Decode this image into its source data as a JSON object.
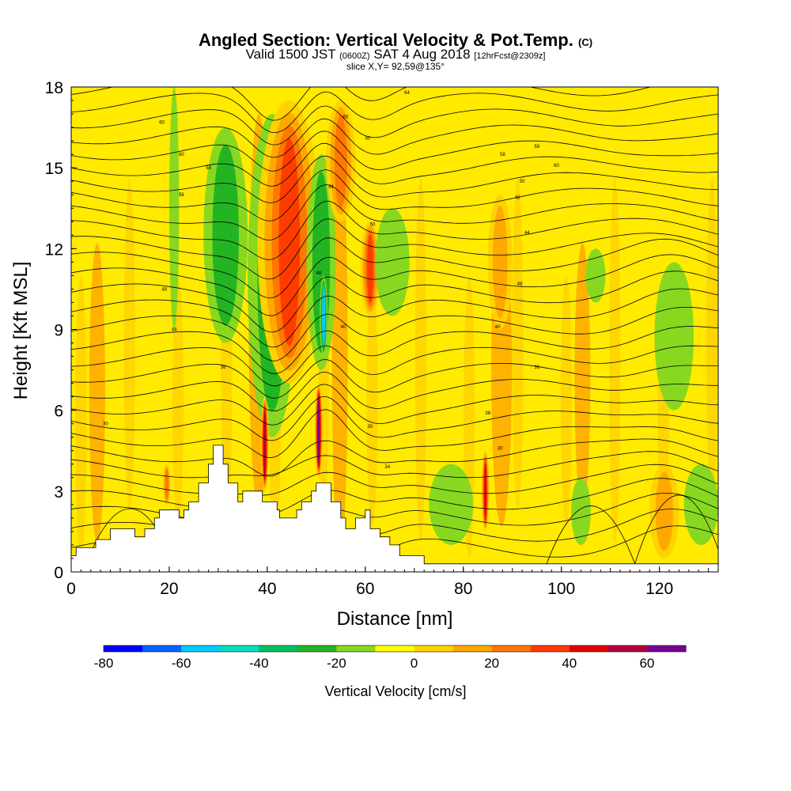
{
  "chart_data": {
    "type": "heatmap",
    "title": "Angled Section: Vertical Velocity & Pot.Temp.",
    "title_unit": "(C)",
    "subtitle_prefix": "Valid 1500 JST",
    "subtitle_utc": "(0600Z)",
    "subtitle_date": "SAT 4 Aug 2018",
    "subtitle_fcst": "[12hrFcst@2309z]",
    "slice_info": "slice X,Y= 92,59@135°",
    "xlabel": "Distance [nm]",
    "ylabel": "Height [Kft MSL]",
    "xlim": [
      0,
      132
    ],
    "ylim": [
      0,
      18
    ],
    "x_ticks": [
      "0",
      "20",
      "40",
      "60",
      "80",
      "100",
      "120"
    ],
    "y_ticks": [
      "0",
      "3",
      "6",
      "9",
      "12",
      "15",
      "18"
    ],
    "x_tick_values": [
      0,
      20,
      40,
      60,
      80,
      100,
      120
    ],
    "y_tick_values": [
      0,
      3,
      6,
      9,
      12,
      15,
      18
    ],
    "colorbar": {
      "title": "Vertical Velocity [cm/s]",
      "labels": [
        "-80",
        "-60",
        "-40",
        "-20",
        "0",
        "20",
        "40",
        "60"
      ],
      "label_values": [
        -80,
        -60,
        -40,
        -20,
        0,
        20,
        40,
        60
      ],
      "range": [
        -80,
        70
      ],
      "step": 10,
      "colors": [
        "#0000ff",
        "#0066ff",
        "#00ccff",
        "#00e0c0",
        "#00c060",
        "#22b422",
        "#88d820",
        "#ffff00",
        "#ffd200",
        "#ffa800",
        "#ff7800",
        "#ff3c00",
        "#e60000",
        "#b4003c",
        "#780096"
      ]
    },
    "field_levels": [
      {
        "value": -45,
        "color": "#00ccff"
      },
      {
        "value": -25,
        "color": "#22b422"
      },
      {
        "value": -12,
        "color": "#88d820"
      },
      {
        "value": 5,
        "color": "#ffd200"
      },
      {
        "value": 15,
        "color": "#ffa800"
      },
      {
        "value": 25,
        "color": "#ff7800"
      },
      {
        "value": 35,
        "color": "#ff3c00"
      },
      {
        "value": 48,
        "color": "#e60000"
      },
      {
        "value": 58,
        "color": "#b4003c"
      },
      {
        "value": 70,
        "color": "#780096"
      }
    ],
    "features": [
      {
        "kind": "down",
        "x0": 20,
        "x1": 22,
        "y0": 9,
        "y1": 18,
        "value": -15
      },
      {
        "kind": "down",
        "x0": 27,
        "x1": 36,
        "y0": 8.5,
        "y1": 16.5,
        "value": -28
      },
      {
        "kind": "down",
        "x0": 36,
        "x1": 46,
        "y0": 5,
        "y1": 17,
        "value": -32
      },
      {
        "kind": "up",
        "x0": 38,
        "x1": 51,
        "y0": 7,
        "y1": 17.5,
        "value": 40
      },
      {
        "kind": "down",
        "x0": 48,
        "x1": 54,
        "y0": 7.5,
        "y1": 15.5,
        "value": -40
      },
      {
        "kind": "down",
        "x0": 51,
        "x1": 52,
        "y0": 8,
        "y1": 11,
        "value": -50
      },
      {
        "kind": "up",
        "x0": 52,
        "x1": 58,
        "y0": 13,
        "y1": 17.5,
        "value": 28
      },
      {
        "kind": "up",
        "x0": 59,
        "x1": 63,
        "y0": 9.5,
        "y1": 13,
        "value": 45
      },
      {
        "kind": "down",
        "x0": 62,
        "x1": 69,
        "y0": 9.5,
        "y1": 13.5,
        "value": -15
      },
      {
        "kind": "up",
        "x0": 39,
        "x1": 40,
        "y0": 3,
        "y1": 6.5,
        "value": 65
      },
      {
        "kind": "up",
        "x0": 50,
        "x1": 51,
        "y0": 3.5,
        "y1": 7,
        "value": 70
      },
      {
        "kind": "up",
        "x0": 19,
        "x1": 20,
        "y0": 2.5,
        "y1": 4,
        "value": 30
      },
      {
        "kind": "down",
        "x0": 73,
        "x1": 82,
        "y0": 1,
        "y1": 4,
        "value": -20
      },
      {
        "kind": "up",
        "x0": 84,
        "x1": 85,
        "y0": 1.5,
        "y1": 4.5,
        "value": 50
      },
      {
        "kind": "up",
        "x0": 85,
        "x1": 90,
        "y0": 9,
        "y1": 14,
        "value": 15
      },
      {
        "kind": "down",
        "x0": 102,
        "x1": 106,
        "y0": 1,
        "y1": 3.5,
        "value": -15
      },
      {
        "kind": "up",
        "x0": 118,
        "x1": 124,
        "y0": 0.5,
        "y1": 4,
        "value": 22
      },
      {
        "kind": "down",
        "x0": 125,
        "x1": 132,
        "y0": 1,
        "y1": 4,
        "value": -15
      },
      {
        "kind": "down",
        "x0": 119,
        "x1": 127,
        "y0": 6,
        "y1": 11.5,
        "value": -15
      },
      {
        "kind": "down",
        "x0": 105,
        "x1": 109,
        "y0": 10,
        "y1": 12,
        "value": -12
      }
    ],
    "contour_labels": [
      {
        "x": 18.5,
        "y": 16.7,
        "text": "60"
      },
      {
        "x": 22.5,
        "y": 15.5,
        "text": "60"
      },
      {
        "x": 28,
        "y": 15,
        "text": "58"
      },
      {
        "x": 22.5,
        "y": 14,
        "text": "56"
      },
      {
        "x": 21,
        "y": 9,
        "text": "44"
      },
      {
        "x": 19,
        "y": 10.5,
        "text": "48"
      },
      {
        "x": 7,
        "y": 5.5,
        "text": "30"
      },
      {
        "x": 31,
        "y": 7.6,
        "text": "36"
      },
      {
        "x": 50.5,
        "y": 11.1,
        "text": "48"
      },
      {
        "x": 55.5,
        "y": 9.1,
        "text": "40"
      },
      {
        "x": 53,
        "y": 14.3,
        "text": "54"
      },
      {
        "x": 56,
        "y": 16.9,
        "text": "60"
      },
      {
        "x": 60.5,
        "y": 16.1,
        "text": "60"
      },
      {
        "x": 61.5,
        "y": 12.9,
        "text": "50"
      },
      {
        "x": 61,
        "y": 5.4,
        "text": "30"
      },
      {
        "x": 64.5,
        "y": 3.9,
        "text": "34"
      },
      {
        "x": 68.5,
        "y": 17.8,
        "text": "64"
      },
      {
        "x": 88,
        "y": 15.5,
        "text": "58"
      },
      {
        "x": 91,
        "y": 13.9,
        "text": "48"
      },
      {
        "x": 93,
        "y": 12.6,
        "text": "44"
      },
      {
        "x": 91.5,
        "y": 10.7,
        "text": "48"
      },
      {
        "x": 87,
        "y": 9.1,
        "text": "40"
      },
      {
        "x": 85,
        "y": 5.9,
        "text": "38"
      },
      {
        "x": 87.5,
        "y": 4.6,
        "text": "30"
      },
      {
        "x": 95,
        "y": 15.8,
        "text": "58"
      },
      {
        "x": 99,
        "y": 15.1,
        "text": "60"
      },
      {
        "x": 92,
        "y": 14.5,
        "text": "50"
      },
      {
        "x": 95,
        "y": 7.6,
        "text": "36"
      }
    ],
    "terrain": [
      [
        0,
        0
      ],
      [
        0,
        0.6
      ],
      [
        1,
        0.6
      ],
      [
        1,
        0.9
      ],
      [
        5,
        0.9
      ],
      [
        5,
        1.2
      ],
      [
        8,
        1.2
      ],
      [
        8,
        1.6
      ],
      [
        13,
        1.6
      ],
      [
        13,
        1.3
      ],
      [
        15,
        1.3
      ],
      [
        15,
        1.6
      ],
      [
        17,
        1.6
      ],
      [
        17,
        2.0
      ],
      [
        18,
        2.0
      ],
      [
        18,
        2.3
      ],
      [
        22,
        2.3
      ],
      [
        22,
        2.0
      ],
      [
        23,
        2.0
      ],
      [
        23,
        2.3
      ],
      [
        24,
        2.3
      ],
      [
        24,
        2.6
      ],
      [
        26,
        2.6
      ],
      [
        26,
        3.3
      ],
      [
        28,
        3.3
      ],
      [
        28,
        4.0
      ],
      [
        29,
        4.0
      ],
      [
        29,
        4.7
      ],
      [
        31,
        4.7
      ],
      [
        31,
        4.0
      ],
      [
        32,
        4.0
      ],
      [
        32,
        3.3
      ],
      [
        34,
        3.3
      ],
      [
        34,
        2.6
      ],
      [
        35,
        2.6
      ],
      [
        35,
        3.0
      ],
      [
        39,
        3.0
      ],
      [
        39,
        2.6
      ],
      [
        42,
        2.6
      ],
      [
        42,
        2.3
      ],
      [
        42.5,
        2.3
      ],
      [
        42.5,
        2.0
      ],
      [
        46,
        2.0
      ],
      [
        46,
        2.3
      ],
      [
        47,
        2.3
      ],
      [
        47,
        2.6
      ],
      [
        49,
        2.6
      ],
      [
        49,
        3.0
      ],
      [
        50,
        3.0
      ],
      [
        50,
        3.3
      ],
      [
        53,
        3.3
      ],
      [
        53,
        2.6
      ],
      [
        55,
        2.6
      ],
      [
        55,
        2.0
      ],
      [
        56,
        2.0
      ],
      [
        56,
        1.6
      ],
      [
        58,
        1.6
      ],
      [
        58,
        2.0
      ],
      [
        60,
        2.0
      ],
      [
        60,
        2.3
      ],
      [
        61,
        2.3
      ],
      [
        61,
        1.6
      ],
      [
        63,
        1.6
      ],
      [
        63,
        1.3
      ],
      [
        65,
        1.3
      ],
      [
        65,
        1.0
      ],
      [
        67,
        1.0
      ],
      [
        67,
        0.6
      ],
      [
        72,
        0.6
      ],
      [
        72,
        0.3
      ],
      [
        132,
        0.3
      ],
      [
        132,
        0
      ]
    ]
  }
}
